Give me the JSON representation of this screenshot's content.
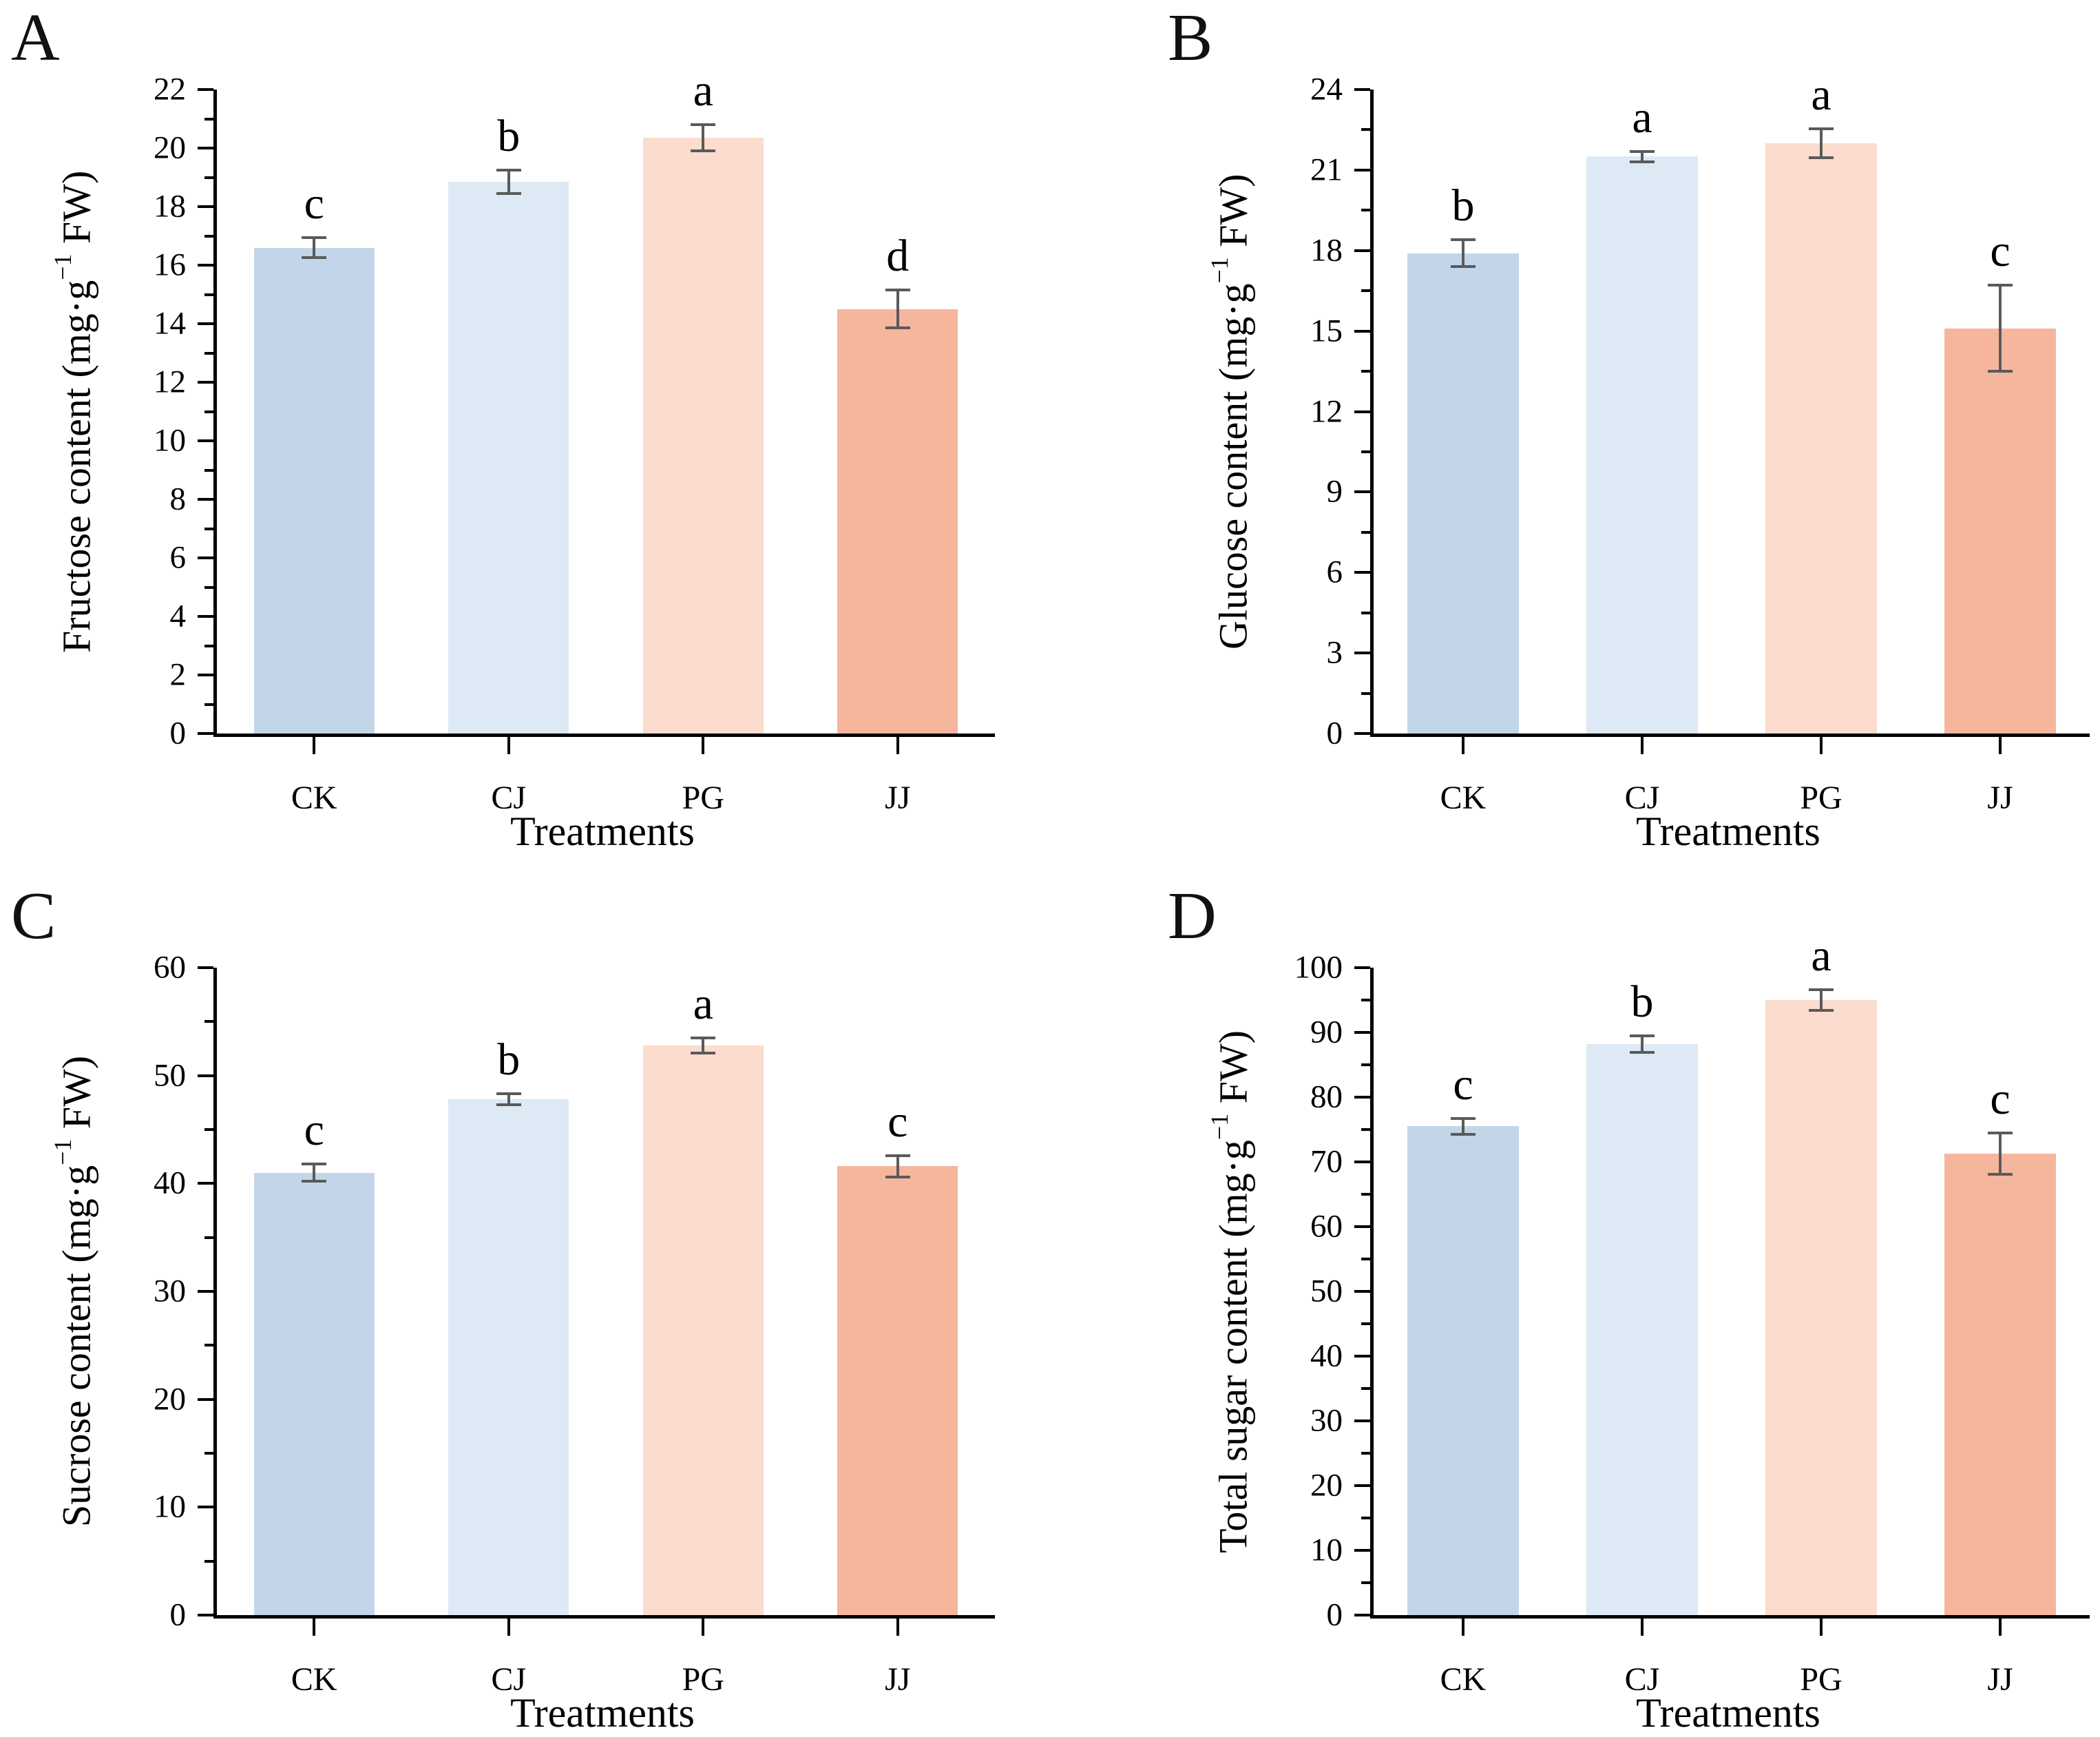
{
  "figure": {
    "categories": [
      "CK",
      "CJ",
      "PG",
      "JJ"
    ],
    "bar_colors": [
      "#c3d6e9",
      "#dde9f4",
      "#fbdcce",
      "#f5b69d"
    ],
    "error_bar_color": "#5a5a5a",
    "axis_color": "#000000",
    "background_color": "#ffffff",
    "x_axis_title": "Treatments"
  },
  "chart_data": [
    {
      "panel": "A",
      "type": "bar",
      "title": "",
      "ylabel": "Fructose content (mg·g⁻¹ FW)",
      "ylabel_parts": {
        "pre": "Fructose content (mg·g",
        "sup": "−1",
        "post": " FW)"
      },
      "xlabel": "Treatments",
      "categories": [
        "CK",
        "CJ",
        "PG",
        "JJ"
      ],
      "values": [
        16.6,
        18.85,
        20.35,
        14.5
      ],
      "errors": [
        0.35,
        0.4,
        0.45,
        0.65
      ],
      "sig_letters": [
        "c",
        "b",
        "a",
        "d"
      ],
      "ylim": [
        0,
        22
      ],
      "ytick_step": 2,
      "grid": false,
      "legend": false
    },
    {
      "panel": "B",
      "type": "bar",
      "title": "",
      "ylabel": "Glucose content (mg·g⁻¹ FW)",
      "ylabel_parts": {
        "pre": "Glucose content (mg·g",
        "sup": "−1",
        "post": " FW)"
      },
      "xlabel": "Treatments",
      "categories": [
        "CK",
        "CJ",
        "PG",
        "JJ"
      ],
      "values": [
        17.9,
        21.5,
        22.0,
        15.1
      ],
      "errors": [
        0.5,
        0.2,
        0.55,
        1.6
      ],
      "sig_letters": [
        "b",
        "a",
        "a",
        "c"
      ],
      "ylim": [
        0,
        24
      ],
      "ytick_step": 3,
      "grid": false,
      "legend": false
    },
    {
      "panel": "C",
      "type": "bar",
      "title": "",
      "ylabel": "Sucrose content (mg·g⁻¹ FW)",
      "ylabel_parts": {
        "pre": "Sucrose content (mg·g",
        "sup": "−1",
        "post": " FW)"
      },
      "xlabel": "Treatments",
      "categories": [
        "CK",
        "CJ",
        "PG",
        "JJ"
      ],
      "values": [
        41.0,
        47.8,
        52.8,
        41.6
      ],
      "errors": [
        0.8,
        0.5,
        0.7,
        1.0
      ],
      "sig_letters": [
        "c",
        "b",
        "a",
        "c"
      ],
      "ylim": [
        0,
        60
      ],
      "ytick_step": 10,
      "grid": false,
      "legend": false
    },
    {
      "panel": "D",
      "type": "bar",
      "title": "",
      "ylabel": "Total sugar content (mg·g⁻¹ FW)",
      "ylabel_parts": {
        "pre": "Total sugar content (mg·g",
        "sup": "−1",
        "post": " FW)"
      },
      "xlabel": "Treatments",
      "categories": [
        "CK",
        "CJ",
        "PG",
        "JJ"
      ],
      "values": [
        75.5,
        88.2,
        95.0,
        71.3
      ],
      "errors": [
        1.2,
        1.3,
        1.6,
        3.2
      ],
      "sig_letters": [
        "c",
        "b",
        "a",
        "c"
      ],
      "ylim": [
        0,
        100
      ],
      "ytick_step": 10,
      "grid": false,
      "legend": false
    }
  ]
}
